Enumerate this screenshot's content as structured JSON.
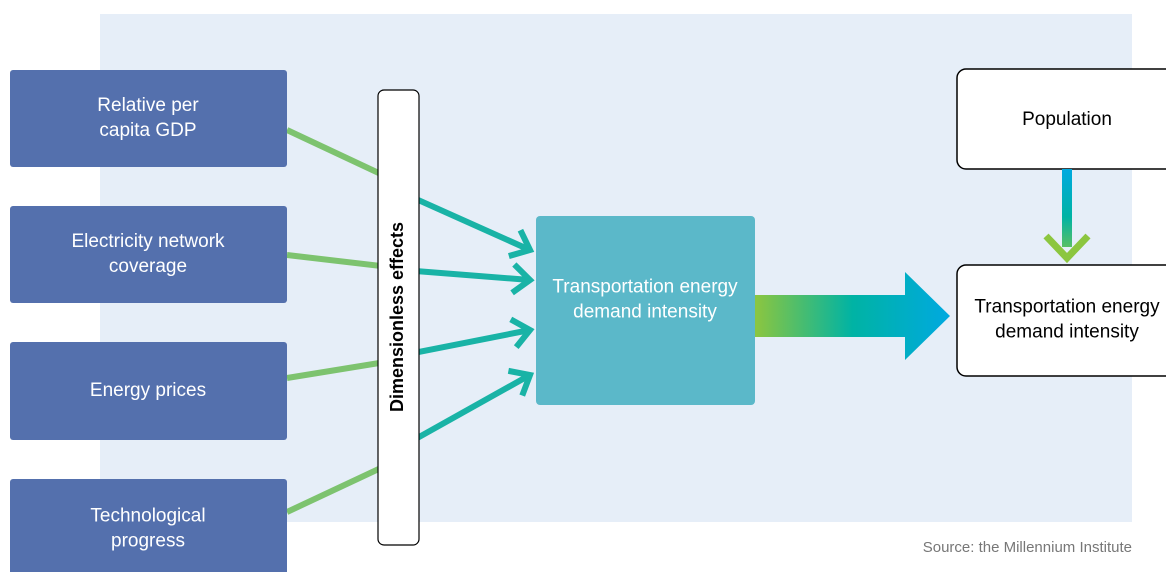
{
  "inputs": [
    {
      "label_lines": [
        "Relative per",
        "capita GDP"
      ]
    },
    {
      "label_lines": [
        "Electricity network",
        "coverage"
      ]
    },
    {
      "label_lines": [
        "Energy prices"
      ]
    },
    {
      "label_lines": [
        "Technological",
        "progress"
      ]
    }
  ],
  "effects_label": "Dimensionless effects",
  "center": {
    "label_lines": [
      "Transportation energy",
      "demand intensity"
    ]
  },
  "population": {
    "label_lines": [
      "Population"
    ]
  },
  "output": {
    "label_lines": [
      "Transportation energy",
      "demand intensity"
    ]
  },
  "source": "Source: the Millennium Institute"
}
